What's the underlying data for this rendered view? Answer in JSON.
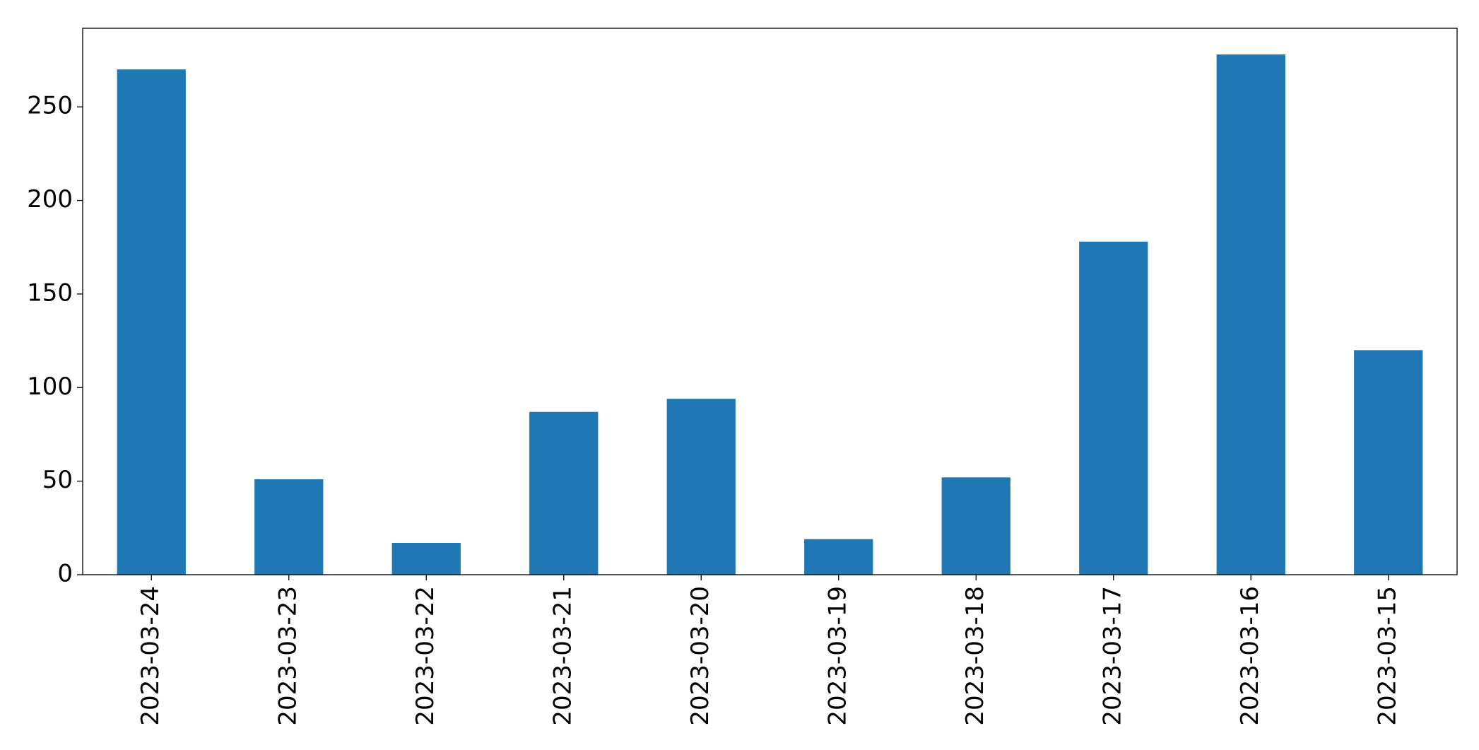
{
  "chart_data": {
    "type": "bar",
    "categories": [
      "2023-03-24",
      "2023-03-23",
      "2023-03-22",
      "2023-03-21",
      "2023-03-20",
      "2023-03-19",
      "2023-03-18",
      "2023-03-17",
      "2023-03-16",
      "2023-03-15"
    ],
    "values": [
      270,
      51,
      17,
      87,
      94,
      19,
      52,
      178,
      278,
      120
    ],
    "color": "#1f77b4",
    "ylim": [
      0,
      292
    ],
    "yticks": [
      0,
      50,
      100,
      150,
      200,
      250
    ],
    "grid": false
  }
}
